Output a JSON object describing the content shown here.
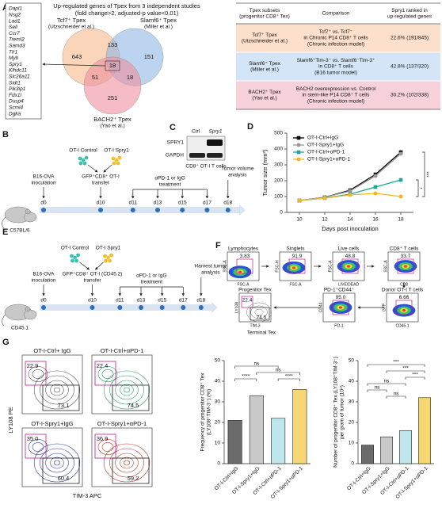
{
  "panel_a": {
    "label": "A",
    "title": [
      "Up-regulated genes of Tpex from 3 independent studies",
      "(fold change>2, adjusted-p value<0.01)"
    ],
    "genes": [
      "Dapl1",
      "Nsg2",
      "Lad1",
      "Sell",
      "Ccr7",
      "Treml2",
      "Samd3",
      "Tlr1",
      "Myb",
      "Spry1",
      "Klhdc11",
      "Slc26a11",
      "Sidt1",
      "Pik3ip1",
      "Fdx1l",
      "Dusp4",
      "Scml4",
      "Dgka"
    ],
    "venn": {
      "sets": [
        {
          "name": "Tcf7⁺ Tpex",
          "source": "(Utzschneider et al.)"
        },
        {
          "name": "Slamf6⁺ Tpex",
          "source": "(Miller et al.)"
        },
        {
          "name": "BACH2⁺ Tpex",
          "source": "(Yao et al.)"
        }
      ],
      "counts": [
        643,
        133,
        151,
        18,
        51,
        18,
        251
      ]
    },
    "table": {
      "header": [
        [
          "Tpex subsets",
          "(progenitor CD8⁺ Tex)"
        ],
        [
          "Comparison"
        ],
        [
          "Spry1 ranked in",
          "up-regulated genes"
        ]
      ],
      "rows": [
        [
          [
            "Tcf7⁺ Tpex",
            "(Utzschneider et al.)"
          ],
          [
            "Tcf7⁺ vs. Tcf7⁻",
            "in Chronic P14 CD8⁺ T cells",
            "(Chronic infection model)"
          ],
          [
            "22.6% (191/845)"
          ]
        ],
        [
          [
            "Slamf6⁺ Tpex",
            "(Miller et al.)"
          ],
          [
            "Slamf6⁺Tim-3⁻ vs. Slamf6⁻Tim-3⁺",
            "in CD8⁺ T cells",
            "(B16 tumor model)"
          ],
          [
            "42.8% (137/320)"
          ]
        ],
        [
          [
            "BACH2⁺ Tpex",
            "(Yao et al.)"
          ],
          [
            "BACH2 overexpression vs. Control",
            "in stem-like P14 CD8⁺ T cells",
            "(Chronic infection model)"
          ],
          [
            "30.2% (102/338)"
          ]
        ]
      ]
    }
  },
  "panel_b": {
    "label": "B",
    "mouse": "C57BL/6",
    "cells": [
      "OT-I Control",
      "OT-I Spry1"
    ],
    "events": [
      [
        "B16-OVA",
        "inoculation"
      ],
      [
        "GFP⁺CD8⁺ OT-I",
        "transfer"
      ],
      [
        "αPD-1 or IgG",
        "treatment"
      ],
      [
        "Tumor volume",
        "analysis"
      ]
    ],
    "days": [
      "d0",
      "d10",
      "d11",
      "d13",
      "d15",
      "d17",
      "d18"
    ]
  },
  "panel_c": {
    "label": "C",
    "lanes": [
      "Ctrl",
      "Spry1"
    ],
    "bands": [
      "SPRY1",
      "GAPDH"
    ],
    "caption": "CD8⁺ OT-I T cells"
  },
  "panel_e": {
    "label": "E",
    "mouse": "CD45.1",
    "cells": [
      "OT-I Control",
      "OT-I Spry1"
    ],
    "events": [
      [
        "B16-OVA",
        "inoculation"
      ],
      [
        "GFP⁺CD8⁺ OT-I (CD45.2)",
        "transfer"
      ],
      [
        "αPD-1 or IgG",
        "treatment"
      ],
      [
        "Harvest tumor",
        "analysis"
      ]
    ],
    "days": [
      "d0",
      "d10",
      "d11",
      "d13",
      "d15",
      "d17",
      "d18"
    ]
  },
  "panel_f": {
    "label": "F",
    "plots": [
      {
        "title": "Lymphocytes",
        "value": "3.83",
        "x": "FSC-A",
        "y": "SSC-A"
      },
      {
        "title": "Singlets",
        "value": "91.9",
        "x": "FSC-A",
        "y": "FSC-H"
      },
      {
        "title": "Live cells",
        "value": "48.8",
        "x": "LIVE/DEAD",
        "y": "FSC-A"
      },
      {
        "title": "CD8⁺ T cells",
        "value": "33.7",
        "x": "CD8",
        "y": "SSC-A"
      },
      {
        "title": "Donor OT-I T cells",
        "value": "6.66",
        "x": "CD45.1",
        "y": "GFP"
      },
      {
        "title": "PD-1⁺CD44⁺",
        "value": "95.0",
        "x": "PD-1",
        "y": "CD44"
      }
    ],
    "progenitor": {
      "title": "Progenitor Tex",
      "values": [
        "22.4",
        "74.5"
      ],
      "x": "TIM-3",
      "y": "LY108",
      "note": "Terminal Tex"
    }
  },
  "panel_g": {
    "label": "G",
    "y_label": "LY108 PE",
    "x_label": "TIM-3 APC",
    "plots": [
      {
        "title": "OT-I-Ctrl+ IgG",
        "values": [
          "22.9",
          "73.1"
        ],
        "color": "#555555"
      },
      {
        "title": "OT-I-Ctrl+αPD-1",
        "values": [
          "22.4",
          "74.5"
        ],
        "color": "#2e9e6a"
      },
      {
        "title": "OT-I-Spry1+IgG",
        "values": [
          "35.0",
          "60.4"
        ],
        "color": "#2b3f9e"
      },
      {
        "title": "OT-I-Spry1+αPD-1",
        "values": [
          "36.9",
          "59.2"
        ],
        "color": "#c0392b"
      }
    ]
  },
  "chart_data": [
    {
      "type": "line",
      "panel": "D",
      "x": [
        10,
        12,
        14,
        16,
        18
      ],
      "xlim": [
        9,
        19
      ],
      "xticks": [
        10,
        12,
        14,
        16,
        18
      ],
      "ylim": [
        0,
        500
      ],
      "yticks": [
        0,
        100,
        200,
        300,
        400,
        500
      ],
      "x_label": "Days post inoculation",
      "y_label": "Tumor size (mm³)",
      "series": [
        {
          "name": "OT-I-Ctrl+IgG",
          "color": "#000000",
          "marker": "square",
          "values": [
            75,
            95,
            140,
            240,
            380
          ]
        },
        {
          "name": "OT-I-Spry1+IgG",
          "color": "#9a9a9a",
          "marker": "circle",
          "values": [
            75,
            95,
            135,
            230,
            370
          ]
        },
        {
          "name": "OT-I-Ctrl+αPD-1",
          "color": "#1aa899",
          "marker": "square",
          "values": [
            75,
            90,
            115,
            160,
            205
          ]
        },
        {
          "name": "OT-I-Spry1+αPD-1",
          "color": "#f2b824",
          "marker": "circle",
          "values": [
            75,
            90,
            110,
            120,
            100
          ]
        }
      ],
      "annotations": [
        "***",
        "*"
      ]
    },
    {
      "type": "bar",
      "categories": [
        "OT-I-Ctrl+IgG",
        "OT-I-Spry1+IgG",
        "OT-I-Ctrl+αPD-1",
        "OT-I-Spry1+αPD-1"
      ],
      "values": [
        21,
        33,
        22,
        36
      ],
      "colors": [
        "#6b6b6b",
        "#c9c9c9",
        "#bfe6ea",
        "#f7d774"
      ],
      "ylim": [
        0,
        50
      ],
      "yticks": [
        0,
        10,
        20,
        30,
        40,
        50
      ],
      "y_label": [
        "Frequency of progenitor CD8⁺ Tex",
        "(LY108⁺TIM-3⁻) (%)"
      ],
      "annotations": [
        "ns",
        "****",
        "ns",
        "****"
      ]
    },
    {
      "type": "bar",
      "categories": [
        "OT-I-Ctrl+IgG",
        "OT-I-Spry1+IgG",
        "OT-I-Ctrl+αPD-1",
        "OT-I-Spry1+αPD-1"
      ],
      "values": [
        9,
        13,
        16,
        32
      ],
      "colors": [
        "#6b6b6b",
        "#c9c9c9",
        "#bfe6ea",
        "#f7d774"
      ],
      "ylim": [
        0,
        50
      ],
      "yticks": [
        0,
        10,
        20,
        30,
        40,
        50
      ],
      "y_label": [
        "Number of progenitor CD8⁺ Tex (LY108⁺TIM-3⁻)",
        "per gram of tumor (10⁴)"
      ],
      "annotations": [
        "***",
        "***",
        "***",
        "ns",
        "ns",
        "ns"
      ]
    }
  ]
}
